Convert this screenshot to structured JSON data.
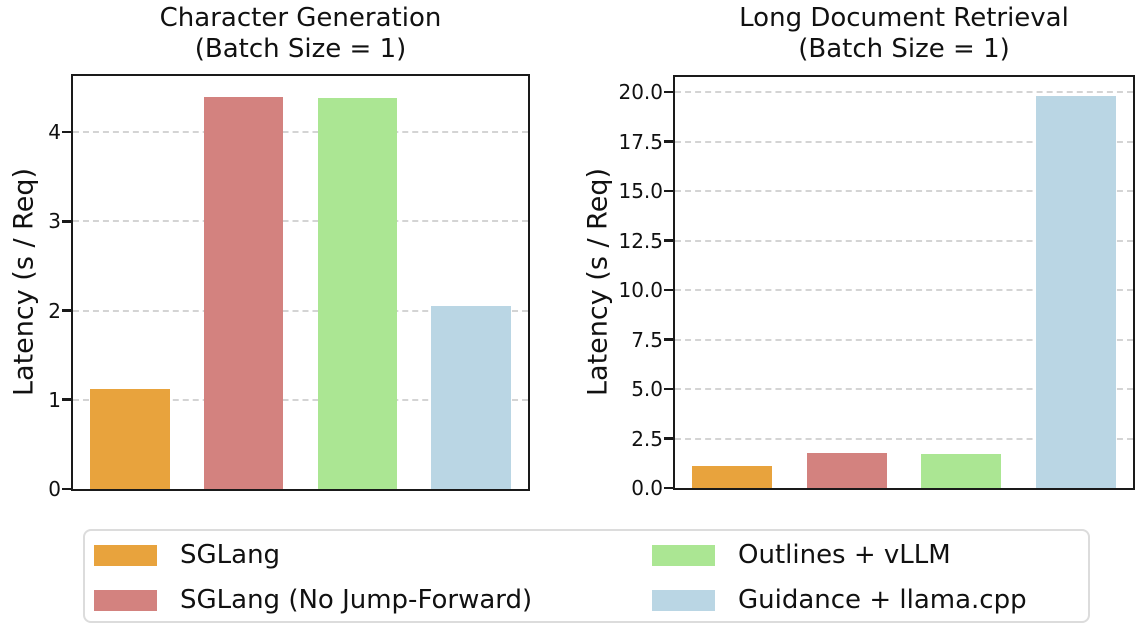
{
  "chart_data": [
    {
      "type": "bar",
      "title_line1": "Character Generation",
      "title_line2": "(Batch Size = 1)",
      "ylabel": "Latency (s / Req)",
      "categories": [
        "SGLang",
        "SGLang (No Jump-Forward)",
        "Outlines + vLLM",
        "Guidance + llama.cpp"
      ],
      "values": [
        1.12,
        4.4,
        4.38,
        2.05
      ],
      "ylim": [
        0,
        4.63
      ],
      "yticks": [
        0,
        1,
        2,
        3,
        4
      ],
      "ytick_labels": [
        "0",
        "1",
        "2",
        "3",
        "4"
      ],
      "grid": "dashed-horizontal",
      "bar_width_fraction": 0.7
    },
    {
      "type": "bar",
      "title_line1": "Long Document Retrieval",
      "title_line2": "(Batch Size = 1)",
      "ylabel": "Latency (s / Req)",
      "categories": [
        "SGLang",
        "SGLang (No Jump-Forward)",
        "Outlines + vLLM",
        "Guidance + llama.cpp"
      ],
      "values": [
        1.1,
        1.75,
        1.7,
        19.8
      ],
      "ylim": [
        0,
        20.76
      ],
      "yticks": [
        0,
        2.5,
        5,
        7.5,
        10,
        12.5,
        15,
        17.5,
        20
      ],
      "ytick_labels": [
        "0.0",
        "2.5",
        "5.0",
        "7.5",
        "10.0",
        "12.5",
        "15.0",
        "17.5",
        "20.0"
      ],
      "grid": "dashed-horizontal",
      "bar_width_fraction": 0.7
    }
  ],
  "legend": {
    "position": "bottom",
    "columns": 2,
    "items": [
      {
        "label": "SGLang",
        "color": "#E8A33D"
      },
      {
        "label": "SGLang (No Jump-Forward)",
        "color": "#D3827F"
      },
      {
        "label": "Outlines + vLLM",
        "color": "#ABE693"
      },
      {
        "label": "Guidance + llama.cpp",
        "color": "#BAD6E4"
      }
    ]
  },
  "colors": {
    "background": "#FFFFFF",
    "axis": "#1A1A1A",
    "grid": "#D4D4D4",
    "text": "#111111",
    "legend_border": "#DCDCDC"
  }
}
